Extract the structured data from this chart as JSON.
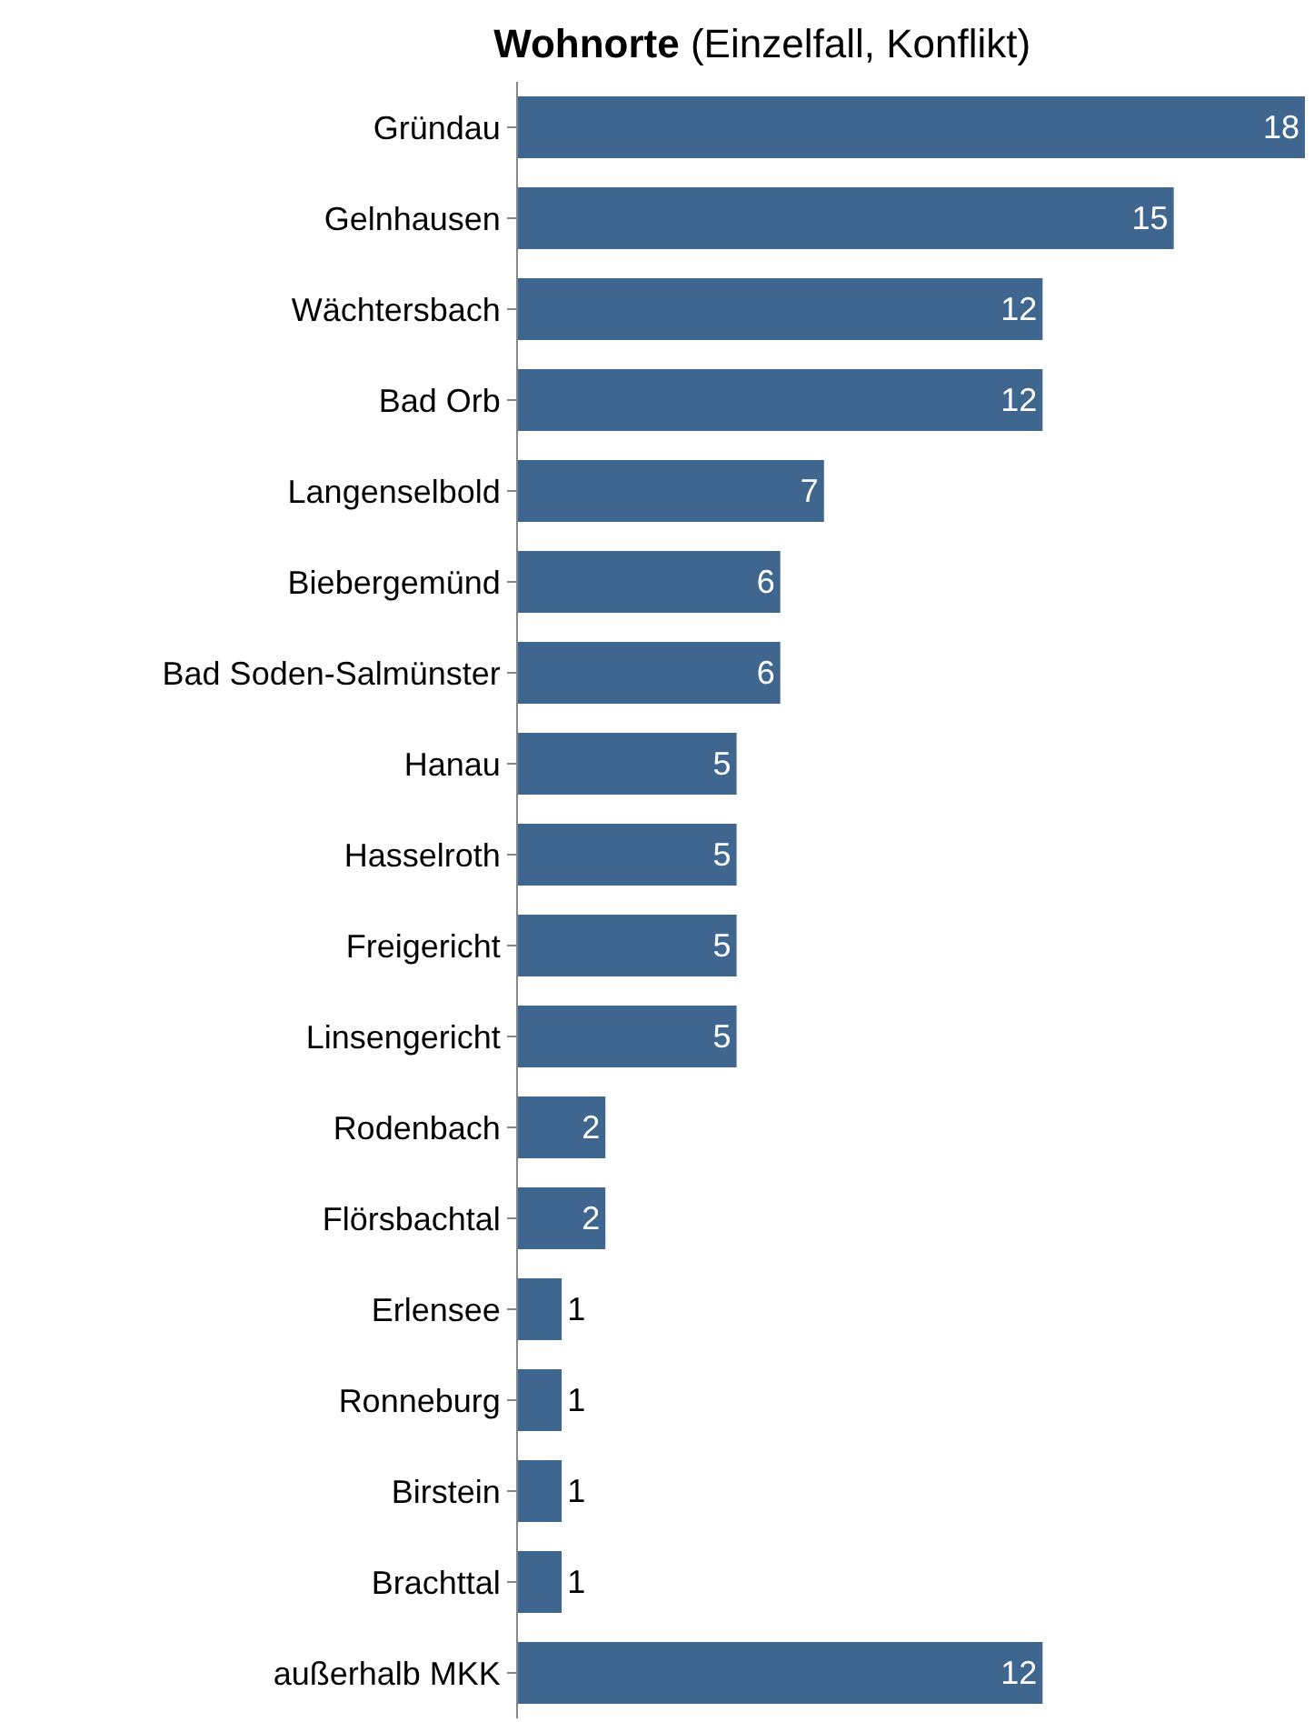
{
  "chart_data": {
    "type": "bar",
    "orientation": "horizontal",
    "title": "Wohnorte (Einzelfall, Konflikt)",
    "categories": [
      "Gründau",
      "Gelnhausen",
      "Wächtersbach",
      "Bad Orb",
      "Langenselbold",
      "Biebergemünd",
      "Bad Soden-Salmünster",
      "Hanau",
      "Hasselroth",
      "Freigericht",
      "Linsengericht",
      "Rodenbach",
      "Flörsbachtal",
      "Erlensee",
      "Ronneburg",
      "Birstein",
      "Brachttal",
      "außerhalb MKK"
    ],
    "values": [
      18,
      15,
      12,
      12,
      7,
      6,
      6,
      5,
      5,
      5,
      5,
      2,
      2,
      1,
      1,
      1,
      1,
      12
    ],
    "color": "#3f668f",
    "data_labels": true
  }
}
